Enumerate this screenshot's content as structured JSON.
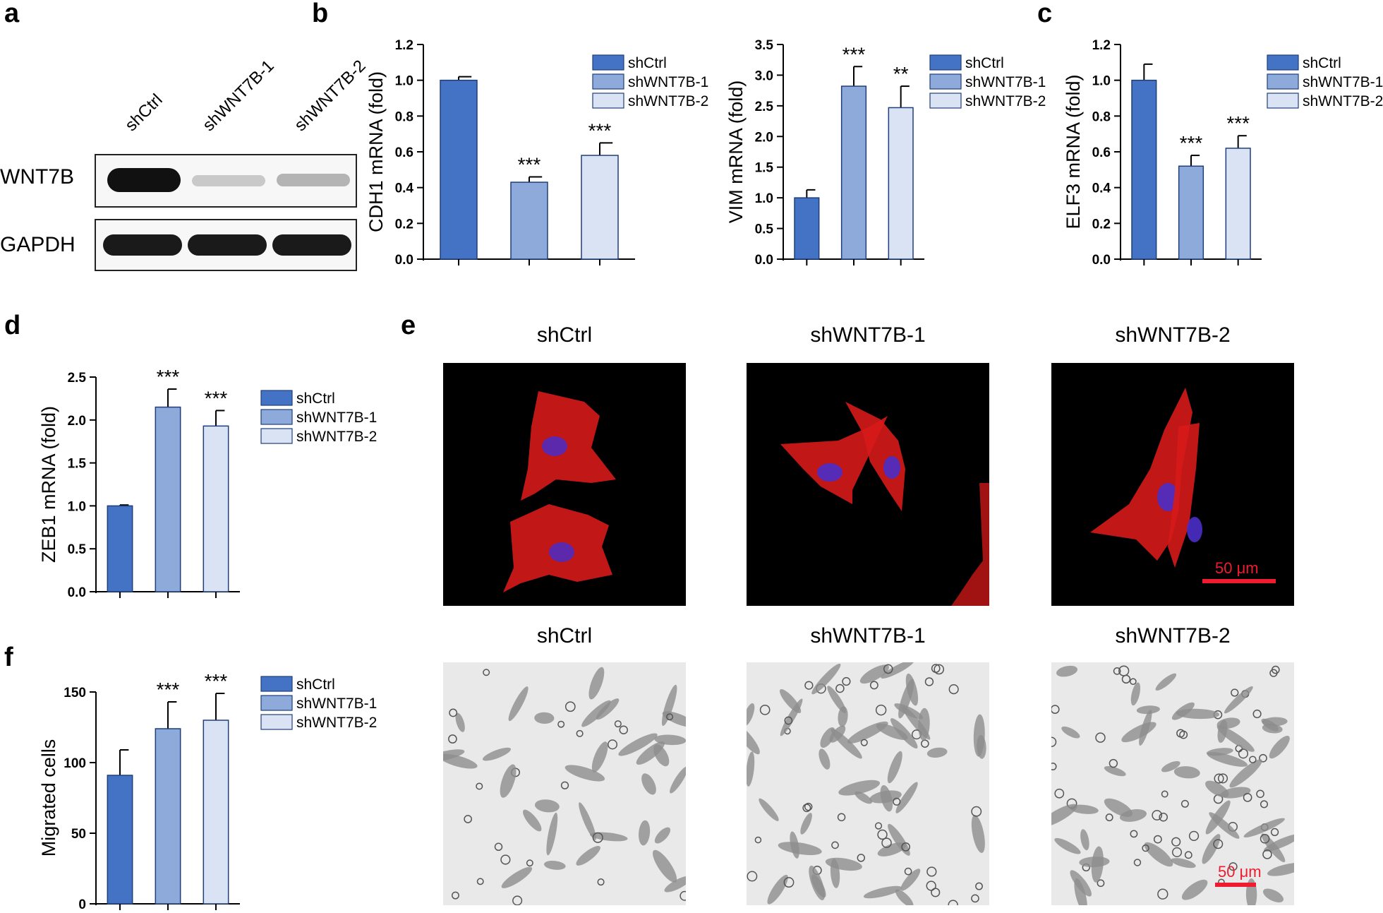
{
  "panels": {
    "a": "a",
    "b": "b",
    "c": "c",
    "d": "d",
    "e": "e",
    "f": "f"
  },
  "legend_colors": {
    "shCtrl": "#4472c4",
    "shWNT7B-1": "#8eaadb",
    "shWNT7B-2": "#dae3f3"
  },
  "blot": {
    "lanes": [
      "shCtrl",
      "shWNT7B-1",
      "shWNT7B-2"
    ],
    "rows": [
      "WNT7B",
      "GAPDH"
    ],
    "levels": {
      "WNT7B": [
        1.0,
        0.25,
        0.35
      ],
      "GAPDH": [
        1.0,
        1.0,
        1.0
      ]
    }
  },
  "micrographs": {
    "row1_titles": [
      "shCtrl",
      "shWNT7B-1",
      "shWNT7B-2"
    ],
    "row2_titles": [
      "shCtrl",
      "shWNT7B-1",
      "shWNT7B-2"
    ],
    "scale_label_top": "50 μm",
    "scale_label_bottom": "50 μm"
  },
  "chart_data": [
    {
      "id": "b1",
      "type": "bar",
      "categories": [
        "shCtrl",
        "shWNT7B-1",
        "shWNT7B-2"
      ],
      "values": [
        1.0,
        0.43,
        0.58
      ],
      "errors": [
        0.02,
        0.03,
        0.07
      ],
      "sig": [
        "",
        "***",
        "***"
      ],
      "ylabel": "CDH1 mRNA (fold)",
      "ylim": [
        0,
        1.2
      ],
      "yticks": [
        "0.0",
        "0.2",
        "0.4",
        "0.6",
        "0.8",
        "1.0",
        "1.2"
      ],
      "legend": [
        "shCtrl",
        "shWNT7B-1",
        "shWNT7B-2"
      ]
    },
    {
      "id": "b2",
      "type": "bar",
      "categories": [
        "shCtrl",
        "shWNT7B-1",
        "shWNT7B-2"
      ],
      "values": [
        1.0,
        2.82,
        2.47
      ],
      "errors": [
        0.13,
        0.32,
        0.35
      ],
      "sig": [
        "",
        "***",
        "**"
      ],
      "ylabel": "VIM mRNA (fold)",
      "ylim": [
        0,
        3.5
      ],
      "yticks": [
        "0.0",
        "0.5",
        "1.0",
        "1.5",
        "2.0",
        "2.5",
        "3.0",
        "3.5"
      ],
      "legend": [
        "shCtrl",
        "shWNT7B-1",
        "shWNT7B-2"
      ]
    },
    {
      "id": "c",
      "type": "bar",
      "categories": [
        "shCtrl",
        "shWNT7B-1",
        "shWNT7B-2"
      ],
      "values": [
        1.0,
        0.52,
        0.62
      ],
      "errors": [
        0.09,
        0.06,
        0.07
      ],
      "sig": [
        "",
        "***",
        "***"
      ],
      "ylabel": "ELF3 mRNA (fold)",
      "ylim": [
        0,
        1.2
      ],
      "yticks": [
        "0.0",
        "0.2",
        "0.4",
        "0.6",
        "0.8",
        "1.0",
        "1.2"
      ],
      "legend": [
        "shCtrl",
        "shWNT7B-1",
        "shWNT7B-2"
      ]
    },
    {
      "id": "d",
      "type": "bar",
      "categories": [
        "shCtrl",
        "shWNT7B-1",
        "shWNT7B-2"
      ],
      "values": [
        1.0,
        2.15,
        1.93
      ],
      "errors": [
        0.01,
        0.21,
        0.18
      ],
      "sig": [
        "",
        "***",
        "***"
      ],
      "ylabel": "ZEB1 mRNA (fold)",
      "ylim": [
        0,
        2.5
      ],
      "yticks": [
        "0.0",
        "0.5",
        "1.0",
        "1.5",
        "2.0",
        "2.5"
      ],
      "legend": [
        "shCtrl",
        "shWNT7B-1",
        "shWNT7B-2"
      ]
    },
    {
      "id": "f",
      "type": "bar",
      "categories": [
        "shCtrl",
        "shWNT7B-1",
        "shWNT7B-2"
      ],
      "values": [
        91,
        124,
        130
      ],
      "errors": [
        18,
        19,
        19
      ],
      "sig": [
        "",
        "***",
        "***"
      ],
      "ylabel": "Migrated cells",
      "ylim": [
        0,
        150
      ],
      "yticks": [
        "0",
        "50",
        "100",
        "150"
      ],
      "legend": [
        "shCtrl",
        "shWNT7B-1",
        "shWNT7B-2"
      ]
    }
  ]
}
